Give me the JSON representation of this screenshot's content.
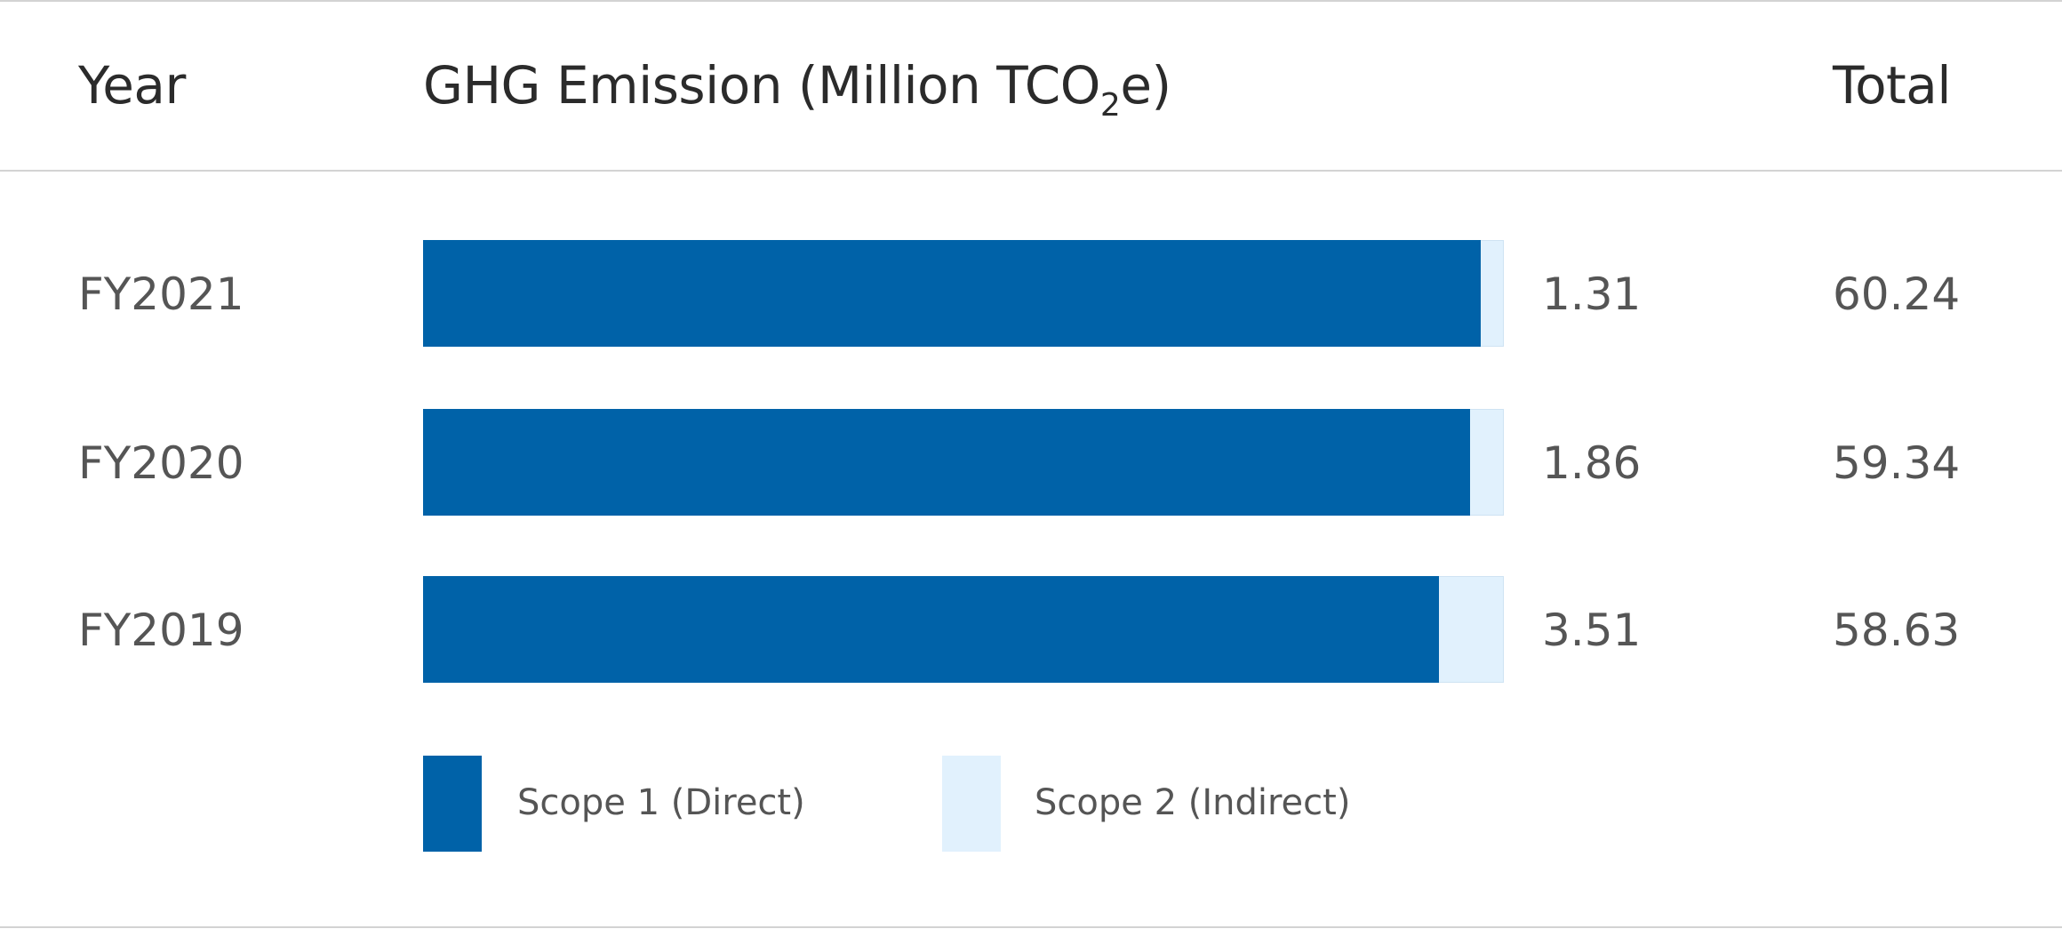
{
  "header": {
    "year": "Year",
    "emission_main": "GHG Emission (Million TCO",
    "emission_sub": "2",
    "emission_tail": "e)",
    "total": "Total"
  },
  "colors": {
    "scope1": "#0062a8",
    "scope2": "#e1f1fd"
  },
  "chart_data": {
    "type": "bar",
    "orientation": "horizontal",
    "stacked": true,
    "title": "GHG Emission (Million TCO2e)",
    "categories": [
      "FY2021",
      "FY2020",
      "FY2019"
    ],
    "series": [
      {
        "name": "Scope 1 (Direct)",
        "values": [
          58.93,
          57.48,
          55.12
        ]
      },
      {
        "name": "Scope 2 (Indirect)",
        "values": [
          1.31,
          1.86,
          3.51
        ]
      }
    ],
    "scope2_labels": [
      "1.31",
      "1.86",
      "3.51"
    ],
    "totals": [
      "60.24",
      "59.34",
      "58.63"
    ],
    "legend": [
      "Scope 1 (Direct)",
      "Scope 2 (Indirect)"
    ],
    "legend_position": "bottom"
  }
}
